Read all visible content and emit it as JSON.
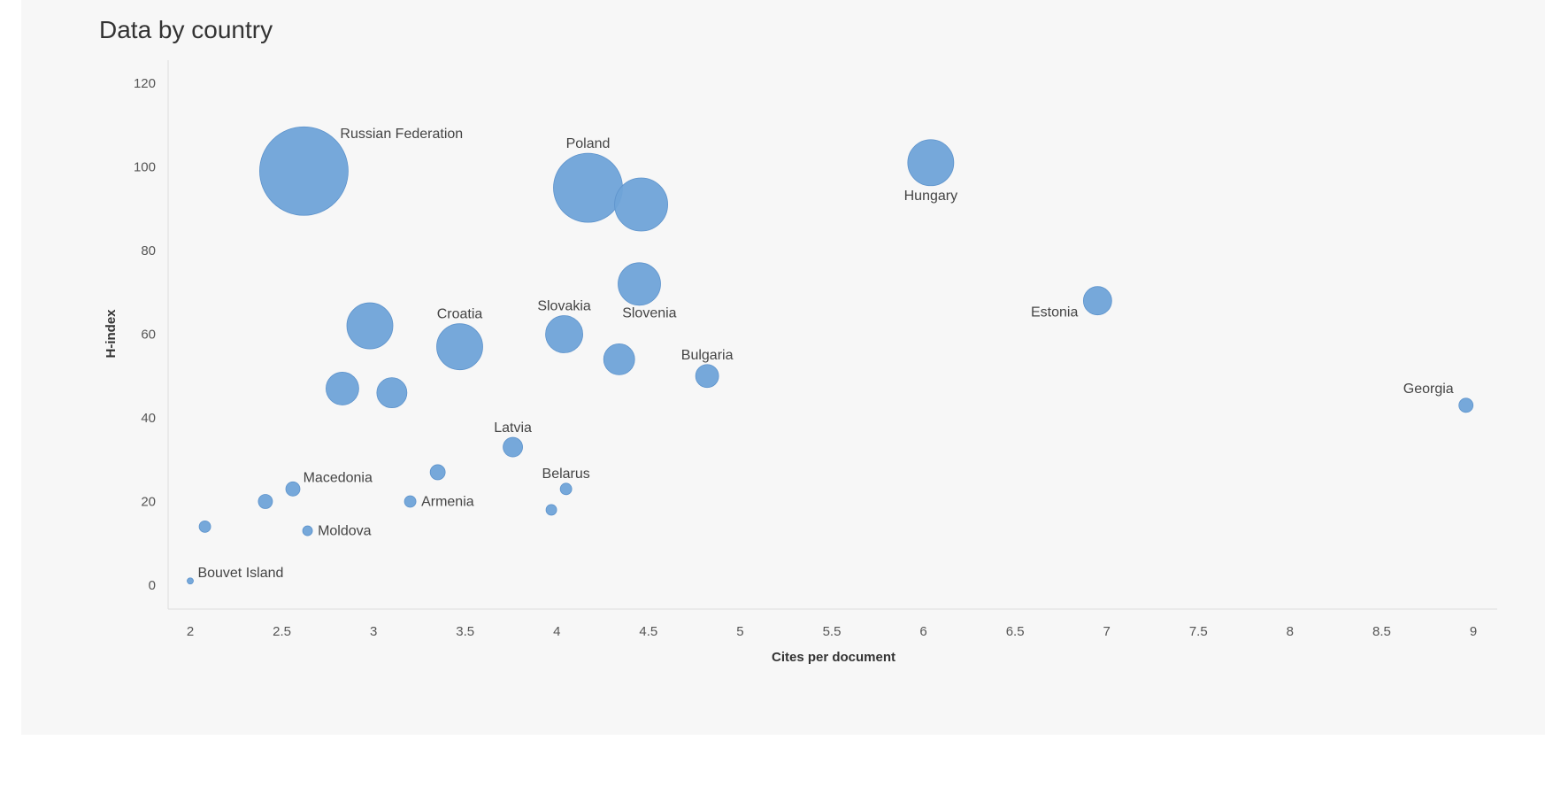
{
  "chart_data": {
    "type": "scatter",
    "title": "Data by country",
    "xlabel": "Cites per document",
    "ylabel": "H-index",
    "xlim": [
      2,
      9
    ],
    "ylim": [
      0,
      120
    ],
    "xticks": [
      "2",
      "2.5",
      "3",
      "3.5",
      "4",
      "4.5",
      "5",
      "5.5",
      "6",
      "6.5",
      "7",
      "7.5",
      "8",
      "8.5",
      "9"
    ],
    "yticks": [
      "0",
      "20",
      "40",
      "60",
      "80",
      "100",
      "120"
    ],
    "grid": false,
    "color": "#6fa3d8",
    "points": [
      {
        "label": "Russian Federation",
        "x": 2.62,
        "y": 99,
        "size": 100,
        "label_pos": "right-top"
      },
      {
        "label": "Poland",
        "x": 4.17,
        "y": 95,
        "size": 78,
        "label_pos": "top"
      },
      {
        "label": "",
        "x": 4.46,
        "y": 91,
        "size": 60
      },
      {
        "label": "Hungary",
        "x": 6.04,
        "y": 101,
        "size": 52,
        "label_pos": "bottom"
      },
      {
        "label": "",
        "x": 4.45,
        "y": 72,
        "size": 48
      },
      {
        "label": "",
        "x": 2.98,
        "y": 62,
        "size": 52
      },
      {
        "label": "Croatia",
        "x": 3.47,
        "y": 57,
        "size": 52,
        "label_pos": "top"
      },
      {
        "label": "Slovakia",
        "x": 4.04,
        "y": 60,
        "size": 42,
        "label_pos": "top"
      },
      {
        "label": "Slovenia",
        "x": 4.34,
        "y": 54,
        "size": 35,
        "label_pos": "top-right"
      },
      {
        "label": "Estonia",
        "x": 6.95,
        "y": 68,
        "size": 32,
        "label_pos": "left-bottom"
      },
      {
        "label": "",
        "x": 2.83,
        "y": 47,
        "size": 37
      },
      {
        "label": "",
        "x": 3.1,
        "y": 46,
        "size": 34
      },
      {
        "label": "Bulgaria",
        "x": 4.82,
        "y": 50,
        "size": 26,
        "label_pos": "top"
      },
      {
        "label": "Georgia",
        "x": 8.96,
        "y": 43,
        "size": 16,
        "label_pos": "left-top"
      },
      {
        "label": "Latvia",
        "x": 3.76,
        "y": 33,
        "size": 22,
        "label_pos": "top"
      },
      {
        "label": "",
        "x": 3.35,
        "y": 27,
        "size": 17
      },
      {
        "label": "Belarus",
        "x": 4.05,
        "y": 23,
        "size": 13,
        "label_pos": "top"
      },
      {
        "label": "Macedonia",
        "x": 2.56,
        "y": 23,
        "size": 16,
        "label_pos": "right-top"
      },
      {
        "label": "",
        "x": 2.41,
        "y": 20,
        "size": 16
      },
      {
        "label": "Armenia",
        "x": 3.2,
        "y": 20,
        "size": 13,
        "label_pos": "right"
      },
      {
        "label": "",
        "x": 3.97,
        "y": 18,
        "size": 12
      },
      {
        "label": "",
        "x": 2.08,
        "y": 14,
        "size": 13
      },
      {
        "label": "Moldova",
        "x": 2.64,
        "y": 13,
        "size": 11,
        "label_pos": "right"
      },
      {
        "label": "Bouvet Island",
        "x": 2.0,
        "y": 1,
        "size": 7,
        "label_pos": "right-top"
      }
    ]
  }
}
